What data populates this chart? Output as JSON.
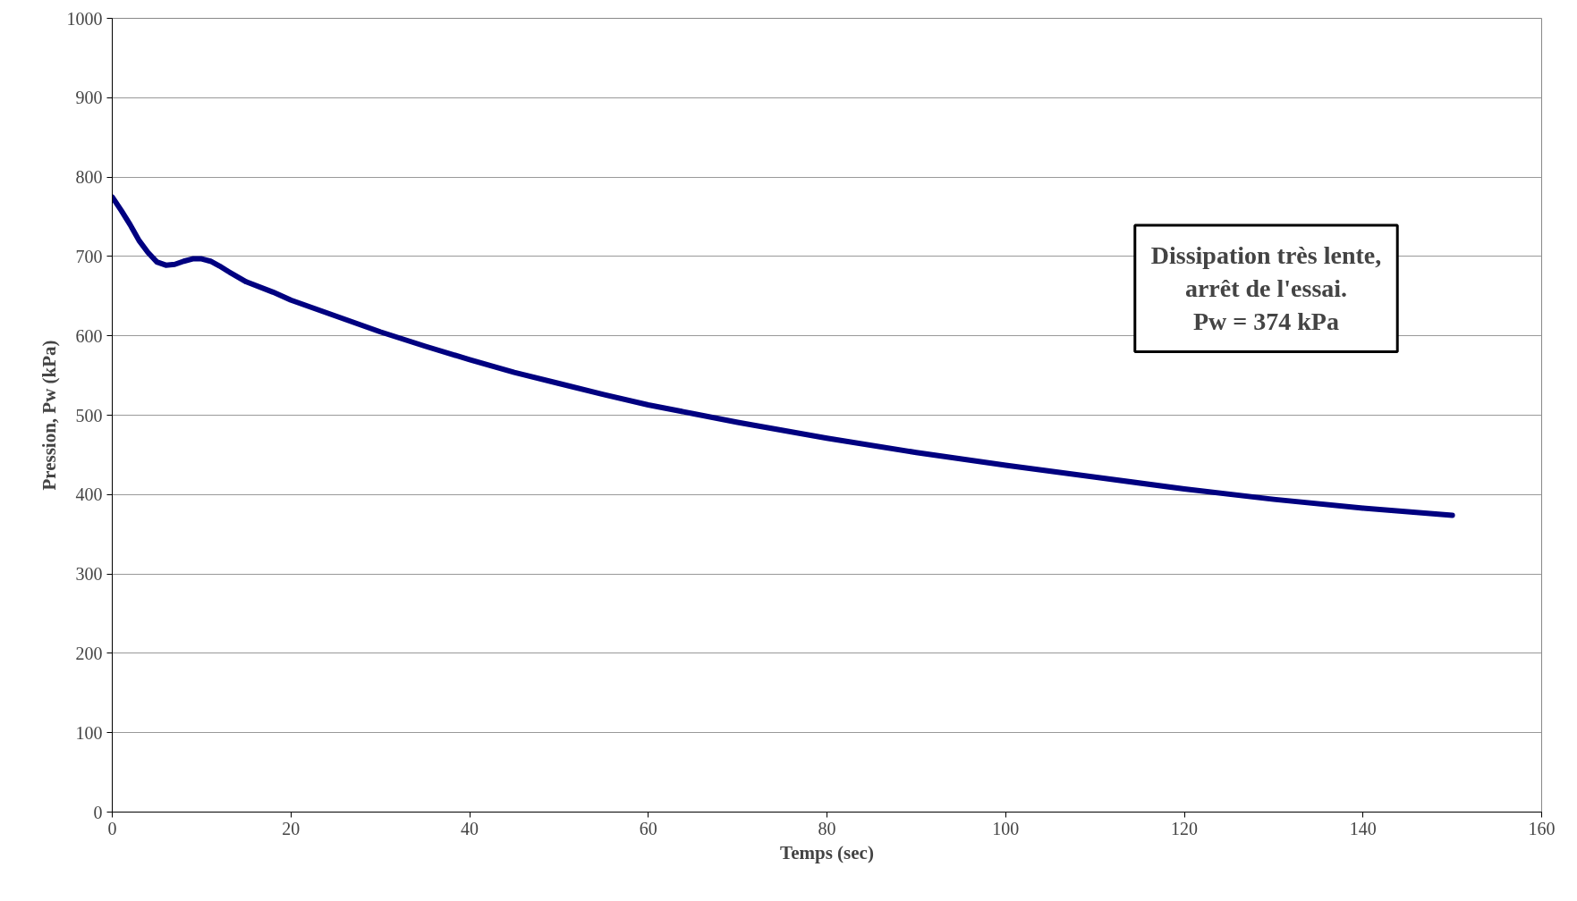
{
  "chart_data": {
    "type": "line",
    "xlabel": "Temps (sec)",
    "ylabel": "Pression, Pw (kPa)",
    "x": [
      0,
      1,
      2,
      3,
      4,
      5,
      6,
      7,
      8,
      9,
      10,
      11,
      12,
      13,
      15,
      18,
      20,
      25,
      30,
      35,
      40,
      45,
      50,
      55,
      60,
      65,
      70,
      80,
      90,
      100,
      110,
      120,
      130,
      140,
      150
    ],
    "series": [
      {
        "color": "#000080",
        "values": [
          775,
          758,
          740,
          720,
          705,
          693,
          689,
          690,
          694,
          697,
          697,
          694,
          688,
          681,
          668,
          655,
          645,
          625,
          605,
          587,
          570,
          554,
          540,
          526,
          513,
          502,
          491,
          471,
          453,
          437,
          422,
          407,
          394,
          383,
          374
        ]
      }
    ],
    "xlim": [
      0,
      160
    ],
    "ylim": [
      0,
      1000
    ],
    "xticks": [
      0,
      20,
      40,
      60,
      80,
      100,
      120,
      140,
      160
    ],
    "yticks": [
      0,
      100,
      200,
      300,
      400,
      500,
      600,
      700,
      800,
      900,
      1000
    ],
    "grid": "y",
    "marker": "none",
    "line_style": "solid",
    "annotations": [
      "Dissipation très lente,\narrêt de l'essai.\nPw = 374 kPa"
    ]
  }
}
